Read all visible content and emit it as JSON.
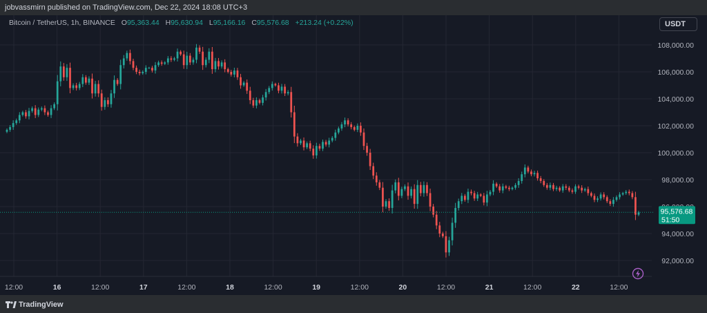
{
  "header": {
    "published_text": "jobvassmirn published on TradingView.com, Dec 22, 2024 18:08 UTC+3"
  },
  "legend": {
    "symbol": "Bitcoin / TetherUS, 1h, BINANCE",
    "o_label": "O",
    "o_value": "95,363.44",
    "h_label": "H",
    "h_value": "95,630.94",
    "l_label": "L",
    "l_value": "95,166.16",
    "c_label": "C",
    "c_value": "95,576.68",
    "change": "+213.24 (+0.22%)"
  },
  "currency_button": "USDT",
  "footer": {
    "brand": "TradingView"
  },
  "colors": {
    "up": "#26a69a",
    "down": "#ef5350",
    "grid": "#242733",
    "text": "#b2b5be",
    "background": "#161a25",
    "price_tag": "#089981",
    "flash": "#a95fc7"
  },
  "icons": {
    "logo": "tradingview-logo-icon",
    "flash": "lightning-icon"
  },
  "chart_data": {
    "type": "candlestick",
    "title": "Bitcoin / TetherUS, 1h, BINANCE",
    "y_axis_ticks": [
      "108,000.00",
      "106,000.00",
      "104,000.00",
      "102,000.00",
      "100,000.00",
      "98,000.00",
      "96,000.00",
      "94,000.00",
      "92,000.00"
    ],
    "y_axis_values": [
      108000,
      106000,
      104000,
      102000,
      100000,
      98000,
      96000,
      94000,
      92000
    ],
    "x_axis_ticks": [
      "12:00",
      "16",
      "12:00",
      "17",
      "12:00",
      "18",
      "12:00",
      "19",
      "12:00",
      "20",
      "12:00",
      "21",
      "12:00",
      "22",
      "12:00"
    ],
    "ylim": [
      91000,
      109000
    ],
    "grid": true,
    "last_price": {
      "value": 95576.68,
      "label": "95,576.68",
      "countdown": "51:50"
    },
    "closes": [
      101700,
      101900,
      102200,
      102400,
      102800,
      103000,
      102700,
      103100,
      103300,
      102800,
      103200,
      103300,
      103000,
      102800,
      103300,
      103600,
      105300,
      106400,
      105600,
      106300,
      104800,
      105000,
      104800,
      105100,
      105600,
      105200,
      105500,
      104400,
      105100,
      104400,
      103400,
      103900,
      103600,
      104400,
      105400,
      105100,
      106500,
      107000,
      107400,
      106800,
      106300,
      106000,
      105900,
      106000,
      106300,
      106300,
      106100,
      106500,
      106700,
      106600,
      106700,
      107000,
      106900,
      107000,
      107500,
      107300,
      106500,
      107200,
      106700,
      106900,
      107800,
      107500,
      106500,
      106900,
      107500,
      106200,
      106800,
      106400,
      106700,
      106200,
      106000,
      105800,
      106100,
      105600,
      105000,
      105200,
      104600,
      103900,
      103500,
      103900,
      103700,
      104100,
      104500,
      104800,
      105100,
      105000,
      104600,
      104900,
      104400,
      104500,
      103000,
      101200,
      100700,
      100900,
      100400,
      100700,
      100300,
      99800,
      100500,
      100300,
      100800,
      100600,
      100900,
      101100,
      101500,
      101800,
      102100,
      102400,
      102100,
      101900,
      101700,
      102000,
      101500,
      100500,
      100000,
      99000,
      98300,
      97800,
      97400,
      96000,
      96400,
      95900,
      97200,
      97800,
      96800,
      97300,
      97500,
      96800,
      97300,
      96200,
      97600,
      97000,
      97600,
      97000,
      96000,
      95400,
      94600,
      94000,
      93800,
      92600,
      93500,
      94800,
      95900,
      96400,
      96800,
      96500,
      97100,
      97000,
      96600,
      96900,
      96800,
      96300,
      96900,
      97100,
      97700,
      97500,
      97200,
      97500,
      97400,
      97300,
      97400,
      97600,
      97900,
      98400,
      98900,
      98600,
      98400,
      98500,
      98100,
      97900,
      97600,
      97400,
      97600,
      97300,
      97400,
      97200,
      97500,
      97400,
      97200,
      97100,
      97500,
      97400,
      97200,
      97300,
      97000,
      96800,
      96500,
      96600,
      96900,
      96700,
      96400,
      96200,
      96500,
      96700,
      96900,
      97000,
      97100,
      97000,
      96700,
      95400,
      95577
    ]
  }
}
